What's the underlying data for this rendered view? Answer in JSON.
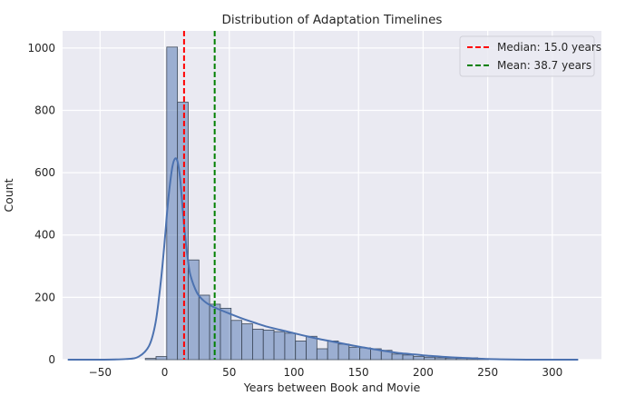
{
  "chart_data": {
    "type": "bar",
    "title": "Distribution of Adaptation Timelines",
    "xlabel": "Years between Book and Movie",
    "ylabel": "Count",
    "xlim": [
      -79,
      338
    ],
    "ylim": [
      0,
      1055
    ],
    "xticks": [
      -50,
      0,
      50,
      100,
      150,
      200,
      250,
      300
    ],
    "yticks": [
      0,
      200,
      400,
      600,
      800,
      1000
    ],
    "grid": true,
    "bin_width": 8.3,
    "bins": {
      "start": [
        -15,
        -6.7,
        1.6,
        9.9,
        18.2,
        26.5,
        34.8,
        43.1,
        51.4,
        59.7,
        68,
        76.3,
        84.6,
        92.9,
        101.2,
        109.5,
        117.8,
        126.1,
        134.4,
        142.7,
        151,
        159.3,
        167.6,
        175.9,
        184.2,
        192.5,
        200.8,
        209.1,
        217.4,
        225.7,
        234,
        242.3
      ],
      "counts": [
        4,
        10,
        1003,
        826,
        320,
        207,
        178,
        165,
        126,
        115,
        98,
        95,
        90,
        85,
        60,
        75,
        35,
        60,
        50,
        40,
        38,
        35,
        30,
        18,
        15,
        10,
        8,
        6,
        5,
        4,
        6,
        3
      ]
    },
    "kde": {
      "x": [
        -75,
        -50,
        -30,
        -20,
        -12,
        -7,
        -3,
        0,
        2,
        4,
        6,
        8,
        10,
        12,
        14,
        16,
        18,
        20,
        25,
        30,
        35,
        40,
        50,
        60,
        70,
        80,
        90,
        100,
        110,
        120,
        130,
        140,
        150,
        160,
        170,
        180,
        190,
        200,
        210,
        220,
        230,
        240,
        250,
        260,
        280,
        300,
        320
      ],
      "y": [
        0,
        0,
        2,
        10,
        45,
        120,
        250,
        380,
        480,
        560,
        620,
        645,
        635,
        580,
        480,
        390,
        320,
        270,
        215,
        190,
        175,
        165,
        148,
        132,
        118,
        105,
        95,
        85,
        75,
        66,
        58,
        50,
        42,
        35,
        28,
        22,
        18,
        14,
        11,
        8,
        6,
        4,
        2,
        1,
        0,
        0,
        0
      ]
    },
    "series": [
      {
        "name": "Median: 15.0 years",
        "value": 15.0,
        "color": "#ff0000",
        "style": "dashed"
      },
      {
        "name": "Mean: 38.7 years",
        "value": 38.7,
        "color": "#008000",
        "style": "dashed"
      }
    ],
    "legend_position": "top-right",
    "colors": {
      "background": "#eaeaf2",
      "grid": "#ffffff",
      "bar_fill": "#4c72b0",
      "bar_edge": "#3f4a5a",
      "kde_line": "#4c72b0"
    }
  }
}
